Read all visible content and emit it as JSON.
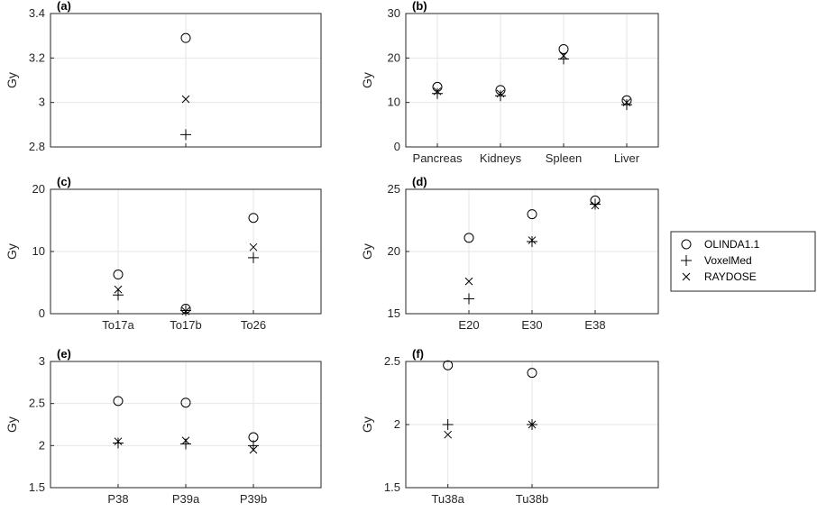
{
  "chart_data": [
    {
      "type": "scatter",
      "panel_label": "(a)",
      "ylabel": "Gy",
      "ylim": [
        2.8,
        3.4
      ],
      "yticks": [
        "2.8",
        "3",
        "3.2",
        "3.4"
      ],
      "categories": [
        ""
      ],
      "series": [
        {
          "name": "OLINDA1.1",
          "values": [
            3.29
          ]
        },
        {
          "name": "VoxelMed",
          "values": [
            2.855
          ]
        },
        {
          "name": "RAYDOSE",
          "values": [
            3.015
          ]
        }
      ]
    },
    {
      "type": "scatter",
      "panel_label": "(b)",
      "ylabel": "Gy",
      "ylim": [
        0,
        30
      ],
      "yticks": [
        "0",
        "10",
        "20",
        "30"
      ],
      "categories": [
        "Pancreas",
        "Kidneys",
        "Spleen",
        "Liver"
      ],
      "series": [
        {
          "name": "OLINDA1.1",
          "values": [
            13.5,
            12.8,
            22.0,
            10.5
          ]
        },
        {
          "name": "VoxelMed",
          "values": [
            12.0,
            11.5,
            19.8,
            9.5
          ]
        },
        {
          "name": "RAYDOSE",
          "values": [
            12.5,
            12.0,
            20.5,
            10.0
          ]
        }
      ]
    },
    {
      "type": "scatter",
      "panel_label": "(c)",
      "ylabel": "Gy",
      "ylim": [
        0,
        20
      ],
      "yticks": [
        "0",
        "10",
        "20"
      ],
      "categories": [
        "To17a",
        "To17b",
        "To26"
      ],
      "series": [
        {
          "name": "OLINDA1.1",
          "values": [
            6.3,
            0.8,
            15.4
          ]
        },
        {
          "name": "VoxelMed",
          "values": [
            3.0,
            0.5,
            9.0
          ]
        },
        {
          "name": "RAYDOSE",
          "values": [
            3.9,
            0.4,
            10.7
          ]
        }
      ]
    },
    {
      "type": "scatter",
      "panel_label": "(d)",
      "ylabel": "Gy",
      "ylim": [
        15,
        25
      ],
      "yticks": [
        "15",
        "20",
        "25"
      ],
      "categories": [
        "E20",
        "E30",
        "E38"
      ],
      "series": [
        {
          "name": "OLINDA1.1",
          "values": [
            21.1,
            23.0,
            24.1
          ]
        },
        {
          "name": "VoxelMed",
          "values": [
            16.2,
            20.8,
            23.8
          ]
        },
        {
          "name": "RAYDOSE",
          "values": [
            17.6,
            20.9,
            23.7
          ]
        }
      ]
    },
    {
      "type": "scatter",
      "panel_label": "(e)",
      "ylabel": "Gy",
      "ylim": [
        1.5,
        3
      ],
      "yticks": [
        "1.5",
        "2",
        "2.5",
        "3"
      ],
      "categories": [
        "P38",
        "P39a",
        "P39b"
      ],
      "series": [
        {
          "name": "OLINDA1.1",
          "values": [
            2.53,
            2.51,
            2.1
          ]
        },
        {
          "name": "VoxelMed",
          "values": [
            2.03,
            2.02,
            2.0
          ]
        },
        {
          "name": "RAYDOSE",
          "values": [
            2.05,
            2.06,
            1.95
          ]
        }
      ]
    },
    {
      "type": "scatter",
      "panel_label": "(f)",
      "ylabel": "Gy",
      "ylim": [
        1.5,
        2.5
      ],
      "yticks": [
        "1.5",
        "2",
        "2.5"
      ],
      "categories": [
        "Tu38a",
        "Tu38b"
      ],
      "series": [
        {
          "name": "OLINDA1.1",
          "values": [
            2.47,
            2.41
          ]
        },
        {
          "name": "VoxelMed",
          "values": [
            2.0,
            2.0
          ]
        },
        {
          "name": "RAYDOSE",
          "values": [
            1.92,
            2.0
          ]
        }
      ]
    }
  ],
  "legend": {
    "placement": "right",
    "entries": [
      {
        "label": "OLINDA1.1",
        "marker": "circle"
      },
      {
        "label": "VoxelMed",
        "marker": "plus"
      },
      {
        "label": "RAYDOSE",
        "marker": "cross"
      }
    ]
  }
}
